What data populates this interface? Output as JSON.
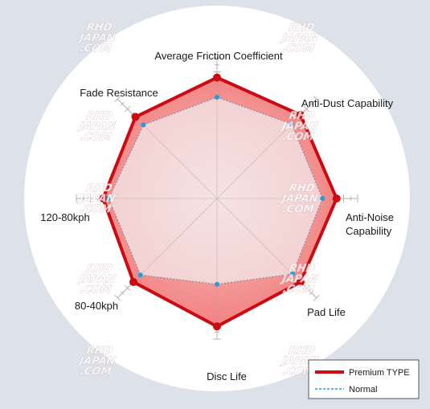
{
  "chart_data": {
    "type": "radar",
    "axes": [
      "Average Friction Coefficient",
      "Anti-Dust Capability",
      "Anti-Noise\nCapability",
      "Pad Life",
      "Disc Life",
      "80-40kph",
      "120-80kph",
      "Fade Resistance"
    ],
    "rmax": 100,
    "grid": true,
    "series": [
      {
        "name": "Premium TYPE",
        "color": "#cc0a12",
        "fill": "#ef6f6f",
        "values": [
          86,
          84,
          85,
          84,
          91,
          84,
          81,
          82
        ]
      },
      {
        "name": "Normal",
        "color": "#1e9fd8",
        "fill": "#f3dada",
        "values": [
          72,
          75,
          75,
          76,
          61,
          77,
          77,
          74
        ]
      }
    ],
    "legend": {
      "position": "bottom-right"
    }
  },
  "watermark": {
    "lines": [
      "RHD",
      "JAPAN",
      ".COM"
    ]
  },
  "colors": {
    "background": "#dde2ea",
    "disc": "#ffffff",
    "grid": "#b4b4b4"
  }
}
